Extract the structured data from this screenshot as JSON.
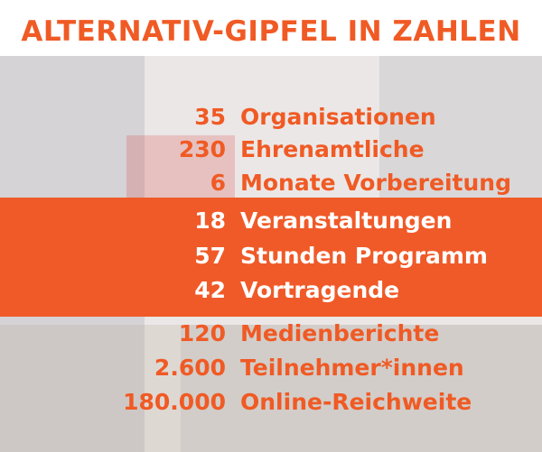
{
  "title": "ALTERNATIV-GIPFEL IN ZAHLEN",
  "groups": [
    {
      "items": [
        {
          "number": "35",
          "label": "Organisationen"
        },
        {
          "number": "230",
          "label": "Ehrenamtliche"
        },
        {
          "number": "6",
          "label": "Monate Vorbereitung"
        }
      ]
    },
    {
      "items": [
        {
          "number": "18",
          "label": "Veranstaltungen"
        },
        {
          "number": "57",
          "label": "Stunden Programm"
        },
        {
          "number": "42",
          "label": "Vortragende"
        }
      ]
    },
    {
      "items": [
        {
          "number": "120",
          "label": "Medienberichte"
        },
        {
          "number": "2.600",
          "label": "Teilnehmer*innen"
        },
        {
          "number": "180.000",
          "label": "Online-Reichweite"
        }
      ]
    }
  ]
}
